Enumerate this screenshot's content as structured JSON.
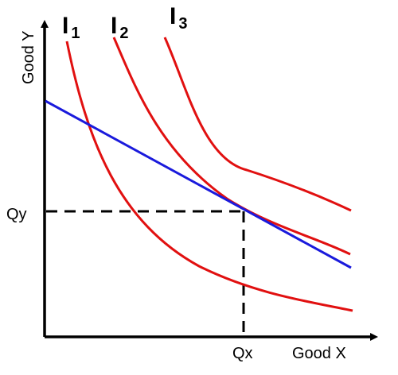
{
  "chart_data": {
    "type": "line",
    "title": "",
    "xlabel": "Good X",
    "ylabel": "Good Y",
    "tick_labels": {
      "x": "Qx",
      "y": "Qy"
    },
    "series": [
      {
        "name": "I1",
        "label_main": "I",
        "label_sub": "1",
        "color": "#e11010"
      },
      {
        "name": "I2",
        "label_main": "I",
        "label_sub": "2",
        "color": "#e11010"
      },
      {
        "name": "I3",
        "label_main": "I",
        "label_sub": "3",
        "color": "#e11010"
      },
      {
        "name": "budget line",
        "color": "#1a1adc"
      }
    ],
    "guides": {
      "style": "dashed",
      "color": "#000000"
    },
    "grid": false,
    "legend": "none"
  }
}
